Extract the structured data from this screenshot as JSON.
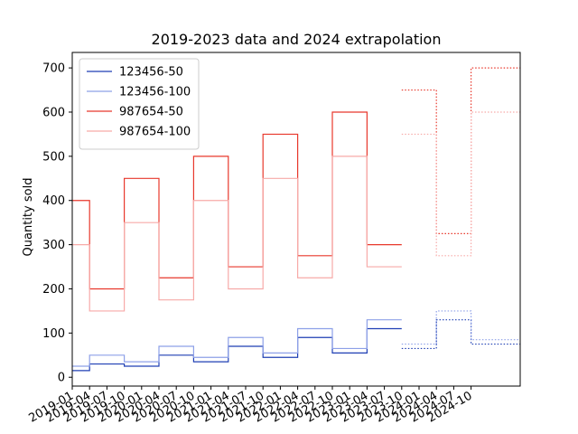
{
  "chart_data": {
    "type": "line",
    "title": "2019-2023 data and 2024 extrapolation",
    "xlabel": "",
    "ylabel": "Quantity sold",
    "x_tick_labels": [
      "2019-01",
      "2019-04",
      "2019-07",
      "2019-10",
      "2020-01",
      "2020-04",
      "2020-07",
      "2020-10",
      "2021-01",
      "2021-04",
      "2021-07",
      "2021-10",
      "2022-01",
      "2022-04",
      "2022-07",
      "2022-10",
      "2023-01",
      "2023-04",
      "2023-07",
      "2023-10",
      "2024-01",
      "2024-04",
      "2024-07",
      "2024-10"
    ],
    "y_ticks": [
      0,
      100,
      200,
      300,
      400,
      500,
      600,
      700
    ],
    "ylim": [
      -20,
      735
    ],
    "grid": false,
    "legend_position": "top-left",
    "step_style": "post",
    "extrapolation_from": "2023-10",
    "series": [
      {
        "name": "123456-50",
        "color": "#1f3fb4",
        "values": [
          15,
          30,
          30,
          25,
          25,
          50,
          50,
          35,
          35,
          70,
          70,
          45,
          45,
          90,
          90,
          55,
          55,
          110,
          110,
          65,
          65,
          130,
          130,
          75,
          75
        ]
      },
      {
        "name": "123456-100",
        "color": "#8da0e8",
        "values": [
          25,
          50,
          50,
          35,
          35,
          70,
          70,
          45,
          45,
          90,
          90,
          55,
          55,
          110,
          110,
          65,
          65,
          130,
          130,
          75,
          75,
          150,
          150,
          85,
          85
        ]
      },
      {
        "name": "987654-50",
        "color": "#e8382c",
        "values": [
          400,
          200,
          200,
          450,
          450,
          225,
          225,
          500,
          500,
          250,
          250,
          550,
          550,
          275,
          275,
          600,
          600,
          300,
          300,
          650,
          650,
          325,
          325,
          700,
          700
        ]
      },
      {
        "name": "987654-100",
        "color": "#f7aaa8",
        "values": [
          300,
          150,
          150,
          350,
          350,
          175,
          175,
          400,
          400,
          200,
          200,
          450,
          450,
          225,
          225,
          500,
          500,
          250,
          250,
          550,
          550,
          275,
          275,
          600,
          600
        ]
      }
    ]
  }
}
